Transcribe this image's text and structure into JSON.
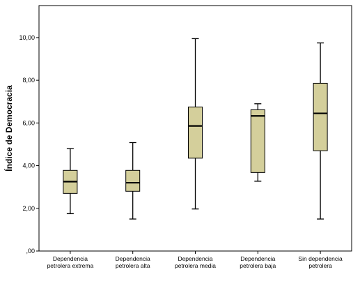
{
  "chart_data": {
    "type": "boxplot",
    "xlabel": "",
    "ylabel": "Índice de Democracia",
    "ylim": [
      0,
      11.5
    ],
    "y_ticks": [
      {
        "value": 0,
        "label": ",00"
      },
      {
        "value": 2,
        "label": "2,00"
      },
      {
        "value": 4,
        "label": "4,00"
      },
      {
        "value": 6,
        "label": "6,00"
      },
      {
        "value": 8,
        "label": "8,00"
      },
      {
        "value": 10,
        "label": "10,00"
      }
    ],
    "grid": false,
    "legend": "none",
    "colors": {
      "box_fill": "#d4cf9b",
      "stroke": "#000000",
      "plot_border": "#000000"
    },
    "categories": [
      [
        "Dependencia",
        "petrolera extrema"
      ],
      [
        "Dependencia",
        "petrolera alta"
      ],
      [
        "Dependencia",
        "petrolera media"
      ],
      [
        "Dependencia",
        "petrolera baja"
      ],
      [
        "Sin dependencia",
        "petrolera"
      ]
    ],
    "boxes": [
      {
        "min": 1.75,
        "q1": 2.7,
        "median": 3.25,
        "q3": 3.78,
        "max": 4.8
      },
      {
        "min": 1.5,
        "q1": 2.8,
        "median": 3.2,
        "q3": 3.78,
        "max": 5.08
      },
      {
        "min": 1.97,
        "q1": 4.35,
        "median": 5.86,
        "q3": 6.75,
        "max": 9.95
      },
      {
        "min": 3.27,
        "q1": 3.68,
        "median": 6.33,
        "q3": 6.62,
        "max": 6.9
      },
      {
        "min": 1.5,
        "q1": 4.7,
        "median": 6.45,
        "q3": 7.86,
        "max": 9.75
      }
    ]
  }
}
